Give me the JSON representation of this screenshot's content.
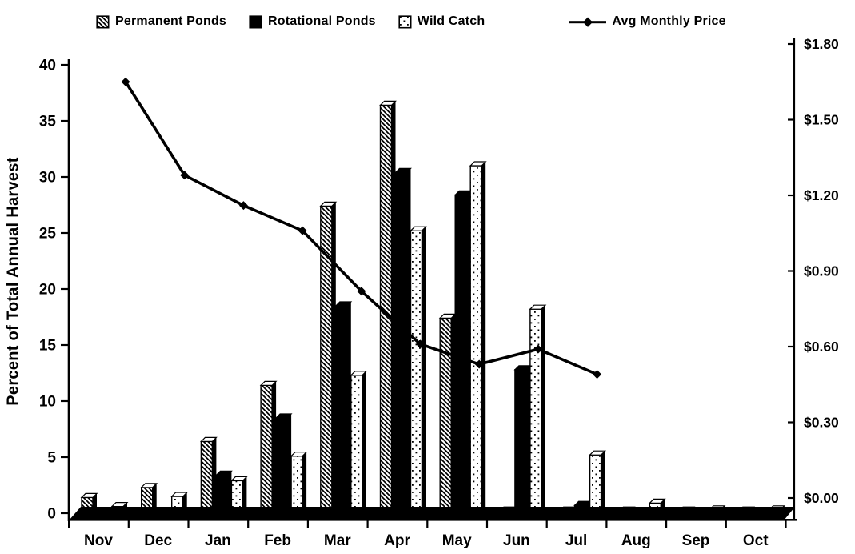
{
  "legend": [
    {
      "label": "Permanent Ponds",
      "swatch": "hatch-square"
    },
    {
      "label": "Rotational Ponds",
      "swatch": "solid-square"
    },
    {
      "label": "Wild Catch",
      "swatch": "dots-square"
    },
    {
      "label": "Avg Monthly Price",
      "swatch": "line-diamond"
    }
  ],
  "colors": {
    "foreground": "#000000",
    "background": "#ffffff"
  },
  "chart_data": {
    "type": "bar",
    "subtype": "grouped-bars-with-line-overlay",
    "categories": [
      "Nov",
      "Dec",
      "Jan",
      "Feb",
      "Mar",
      "Apr",
      "May",
      "Jun",
      "Jul",
      "Aug",
      "Sep",
      "Oct"
    ],
    "series": [
      {
        "name": "Permanent Ponds",
        "type": "bar",
        "axis": "left",
        "pattern": "diagonal-hatch",
        "values": [
          1.4,
          2.3,
          6.4,
          11.4,
          27.4,
          36.4,
          17.4,
          0.2,
          0.2,
          0.2,
          0.2,
          0.2
        ]
      },
      {
        "name": "Rotational Ponds",
        "type": "bar",
        "axis": "left",
        "pattern": "solid-black",
        "values": [
          0.1,
          0.1,
          3.4,
          8.5,
          18.5,
          30.4,
          28.4,
          12.8,
          0.7,
          0.1,
          0.1,
          0.1
        ]
      },
      {
        "name": "Wild Catch",
        "type": "bar",
        "axis": "left",
        "pattern": "dots",
        "values": [
          0.6,
          1.5,
          2.9,
          5.1,
          12.3,
          25.2,
          31.0,
          18.2,
          5.2,
          0.9,
          0.3,
          0.3
        ]
      },
      {
        "name": "Avg Monthly Price",
        "type": "line",
        "axis": "right",
        "marker": "diamond",
        "values": [
          1.65,
          1.28,
          1.16,
          1.06,
          0.82,
          0.61,
          0.53,
          0.59,
          0.49,
          null,
          null,
          null
        ]
      }
    ],
    "left_axis": {
      "label": "Percent of Total Annual Harvest",
      "min": 0,
      "max": 40,
      "tick_step": 5,
      "ticks": [
        "0",
        "5",
        "10",
        "15",
        "20",
        "25",
        "30",
        "35",
        "40"
      ]
    },
    "right_axis": {
      "label": "",
      "min": 0.0,
      "max": 1.8,
      "tick_step": 0.3,
      "ticks": [
        "$0.00",
        "$0.30",
        "$0.60",
        "$0.90",
        "$1.20",
        "$1.50",
        "$1.80"
      ]
    },
    "grid": false,
    "legend_position": "top"
  }
}
